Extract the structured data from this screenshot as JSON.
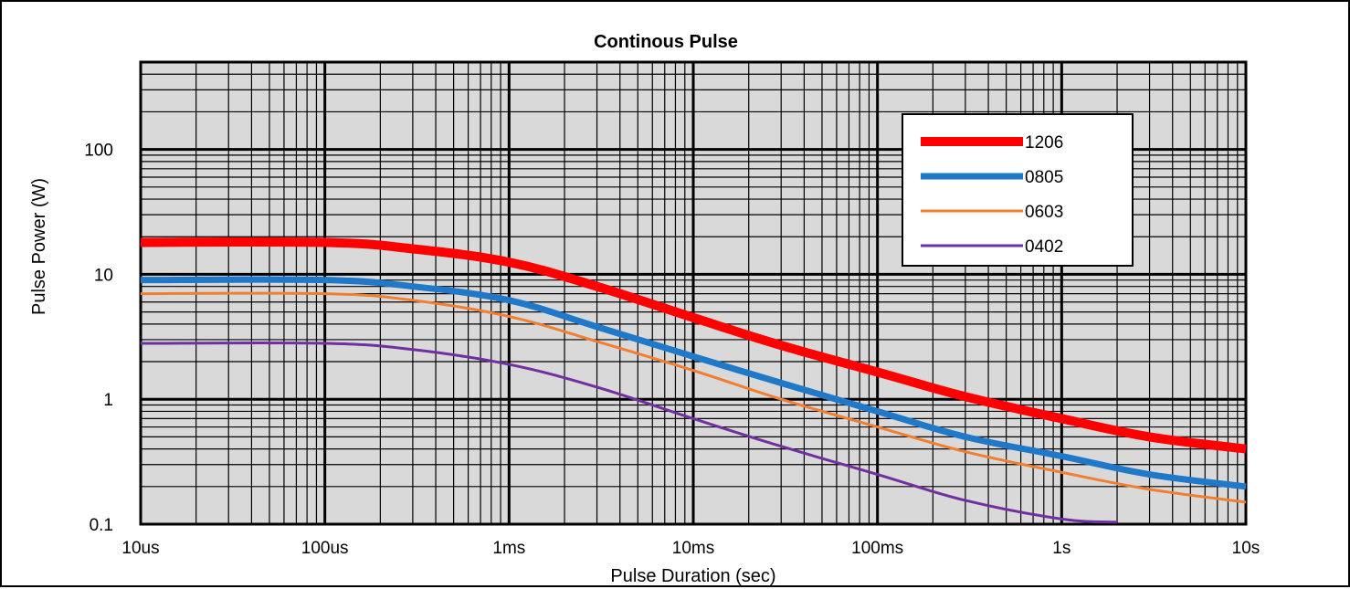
{
  "chart_data": {
    "type": "line",
    "title": "Continous Pulse",
    "xlabel": "Pulse Duration (sec)",
    "ylabel": "Pulse Power (W)",
    "x_scale": "log",
    "y_scale": "log",
    "xlim": [
      1e-05,
      10
    ],
    "ylim": [
      0.1,
      500
    ],
    "x_ticks": [
      {
        "value": 1e-05,
        "label": "10us"
      },
      {
        "value": 0.0001,
        "label": "100us"
      },
      {
        "value": 0.001,
        "label": "1ms"
      },
      {
        "value": 0.01,
        "label": "10ms"
      },
      {
        "value": 0.1,
        "label": "100ms"
      },
      {
        "value": 1,
        "label": "1s"
      },
      {
        "value": 10,
        "label": "10s"
      }
    ],
    "y_ticks": [
      {
        "value": 0.1,
        "label": "0.1"
      },
      {
        "value": 1,
        "label": "1"
      },
      {
        "value": 10,
        "label": "10"
      },
      {
        "value": 100,
        "label": "100"
      }
    ],
    "grid": true,
    "legend_position": "top-right",
    "x": [
      1e-05,
      0.0001,
      0.0003,
      0.001,
      0.003,
      0.01,
      0.03,
      0.1,
      0.3,
      1,
      3,
      10
    ],
    "series": [
      {
        "name": "1206",
        "color": "#ff0000",
        "width": 10,
        "values": [
          18,
          18,
          16,
          12.5,
          8,
          4.5,
          2.7,
          1.65,
          1.05,
          0.7,
          0.5,
          0.4
        ]
      },
      {
        "name": "0805",
        "color": "#1f78c8",
        "width": 7,
        "values": [
          9,
          9,
          8,
          6.2,
          3.8,
          2.2,
          1.35,
          0.8,
          0.5,
          0.35,
          0.25,
          0.2
        ]
      },
      {
        "name": "0603",
        "color": "#f08030",
        "width": 3,
        "values": [
          7,
          7,
          6.2,
          4.6,
          2.9,
          1.7,
          1.0,
          0.6,
          0.38,
          0.26,
          0.19,
          0.15
        ]
      },
      {
        "name": "0402",
        "color": "#7030a0",
        "width": 3,
        "x_end": 2,
        "values": [
          2.8,
          2.8,
          2.5,
          1.9,
          1.25,
          0.7,
          0.42,
          0.25,
          0.155,
          0.11,
          0.1,
          null
        ]
      }
    ]
  }
}
